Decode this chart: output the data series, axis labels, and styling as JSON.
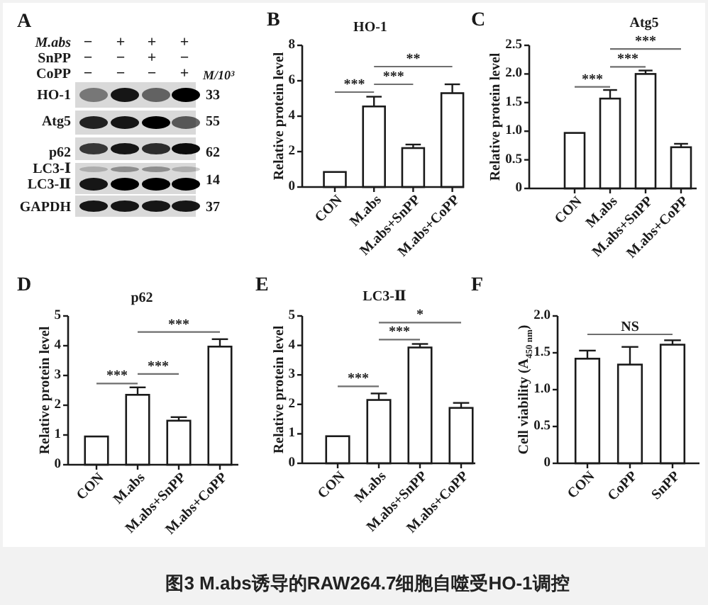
{
  "chart_data": [
    {
      "type": "other",
      "annotations": [
        "A",
        "M.abs",
        "SnPP",
        "CoPP",
        "−",
        "+",
        "+",
        "+",
        "−",
        "−",
        "+",
        "−",
        "−",
        "−",
        "−",
        "+",
        "M/10³",
        "HO-1",
        "33",
        "Atg5",
        "55",
        "p62",
        "62",
        "LC3-Ⅰ",
        "LC3-Ⅱ",
        "14",
        "GAPDH",
        "37"
      ]
    },
    {
      "type": "bar",
      "title": "HO-1",
      "ylabel": "Relative protein level",
      "categories": [
        "CON",
        "M.abs",
        "M.abs+SnPP",
        "M.abs+CoPP"
      ],
      "values": [
        0.85,
        4.55,
        2.2,
        5.3
      ],
      "errors": [
        null,
        [
          4.55,
          5.1
        ],
        [
          2.2,
          2.4
        ],
        [
          5.3,
          5.8
        ]
      ],
      "color": "#ffffff",
      "ylim": [
        0,
        8
      ],
      "yticks": [
        0,
        2,
        4,
        6,
        8
      ],
      "annotations": [
        "B",
        "***",
        "***",
        "**"
      ]
    },
    {
      "type": "bar",
      "title": "Atg5",
      "ylabel": "Relative protein level",
      "categories": [
        "CON",
        "M.abs",
        "M.abs+SnPP",
        "M.abs+CoPP"
      ],
      "values": [
        0.97,
        1.57,
        2.0,
        0.72
      ],
      "errors": [
        null,
        [
          1.57,
          1.72
        ],
        [
          2.0,
          2.06
        ],
        [
          0.72,
          0.78
        ]
      ],
      "color": "#ffffff",
      "ylim": [
        0,
        2.5
      ],
      "yticks": [
        0,
        {
          "value": 0.5,
          "label": "0.5"
        },
        {
          "value": 1,
          "label": "1.0"
        },
        {
          "value": 1.5,
          "label": "1.5"
        },
        {
          "value": 2,
          "label": "2.0"
        },
        {
          "value": 2.5,
          "label": "2.5"
        }
      ],
      "annotations": [
        "C",
        "***",
        "***",
        "***"
      ]
    },
    {
      "type": "bar",
      "title": "p62",
      "ylabel": "Relative protein level",
      "categories": [
        "CON",
        "M.abs",
        "M.abs+SnPP",
        "M.abs+CoPP"
      ],
      "values": [
        0.95,
        2.35,
        1.48,
        3.97
      ],
      "errors": [
        null,
        [
          2.35,
          2.6
        ],
        [
          1.48,
          1.6
        ],
        [
          3.97,
          4.22
        ]
      ],
      "color": "#ffffff",
      "ylim": [
        0,
        5
      ],
      "yticks": [
        0,
        1,
        2,
        3,
        4,
        5
      ],
      "annotations": [
        "D",
        "***",
        "***",
        "***"
      ]
    },
    {
      "type": "bar",
      "title": "LC3-Ⅱ",
      "ylabel": "Relative protein level",
      "categories": [
        "CON",
        "M.abs",
        "M.abs+SnPP",
        "M.abs+CoPP"
      ],
      "values": [
        0.92,
        2.15,
        3.93,
        1.88
      ],
      "errors": [
        null,
        [
          2.15,
          2.37
        ],
        [
          3.93,
          4.05
        ],
        [
          1.88,
          2.05
        ]
      ],
      "color": "#ffffff",
      "ylim": [
        0,
        5
      ],
      "yticks": [
        0,
        1,
        2,
        3,
        4,
        5
      ],
      "annotations": [
        "E",
        "***",
        "***",
        "*"
      ]
    },
    {
      "type": "bar",
      "ylabel": "Cell viability (A$_{450 nm}$)",
      "categories": [
        "CON",
        "CoPP",
        "SnPP"
      ],
      "values": [
        1.42,
        1.34,
        1.61
      ],
      "errors": [
        [
          1.42,
          1.53
        ],
        [
          1.34,
          1.58
        ],
        [
          1.61,
          1.67
        ]
      ],
      "color": "#ffffff",
      "ylim": [
        0,
        2
      ],
      "yticks": [
        0,
        {
          "value": 0.5,
          "label": "0.5"
        },
        {
          "value": 1,
          "label": "1.0"
        },
        {
          "value": 1.5,
          "label": "1.5"
        },
        {
          "value": 2,
          "label": "2.0"
        }
      ],
      "annotations": [
        "F",
        "NS"
      ]
    },
    {
      "type": "other",
      "title": "图3 M.abs诱导的RAW264.7细胞自噬受HO-1调控"
    }
  ]
}
